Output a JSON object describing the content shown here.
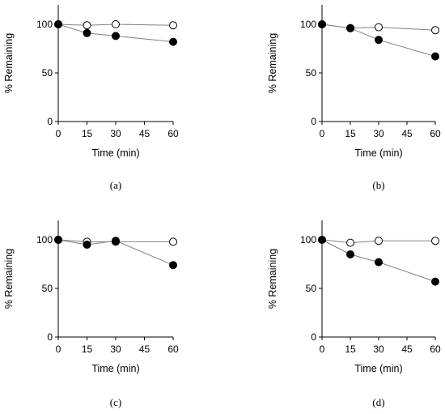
{
  "chart_data": [
    {
      "type": "line",
      "panel_label": "(a)",
      "xlabel": "Time (min)",
      "ylabel": "% Remaining",
      "xlim": [
        0,
        60
      ],
      "ylim": [
        0,
        120
      ],
      "x_ticks": [
        0,
        15,
        30,
        45,
        60
      ],
      "y_ticks": [
        0,
        50,
        100
      ],
      "series": [
        {
          "marker": "open-circle",
          "x": [
            0,
            15,
            30,
            60
          ],
          "values": [
            100,
            99,
            100,
            99
          ]
        },
        {
          "marker": "filled-circle",
          "x": [
            0,
            15,
            30,
            60
          ],
          "values": [
            100,
            91,
            88,
            82
          ]
        }
      ]
    },
    {
      "type": "line",
      "panel_label": "(b)",
      "xlabel": "Time (min)",
      "ylabel": "% Remaining",
      "xlim": [
        0,
        60
      ],
      "ylim": [
        0,
        120
      ],
      "x_ticks": [
        0,
        15,
        30,
        45,
        60
      ],
      "y_ticks": [
        0,
        50,
        100
      ],
      "series": [
        {
          "marker": "open-circle",
          "x": [
            0,
            15,
            30,
            60
          ],
          "values": [
            100,
            96,
            97,
            94
          ]
        },
        {
          "marker": "filled-circle",
          "x": [
            0,
            15,
            30,
            60
          ],
          "values": [
            100,
            96,
            84,
            67
          ]
        }
      ]
    },
    {
      "type": "line",
      "panel_label": "(c)",
      "xlabel": "Time (min)",
      "ylabel": "% Remaining",
      "xlim": [
        0,
        60
      ],
      "ylim": [
        0,
        120
      ],
      "x_ticks": [
        0,
        15,
        30,
        45,
        60
      ],
      "y_ticks": [
        0,
        50,
        100
      ],
      "series": [
        {
          "marker": "open-circle",
          "x": [
            0,
            15,
            30,
            60
          ],
          "values": [
            100,
            98,
            98,
            98
          ]
        },
        {
          "marker": "filled-circle",
          "x": [
            0,
            15,
            30,
            60
          ],
          "values": [
            100,
            95,
            99,
            74
          ]
        }
      ]
    },
    {
      "type": "line",
      "panel_label": "(d)",
      "xlabel": "Time (min)",
      "ylabel": "% Remaining",
      "xlim": [
        0,
        60
      ],
      "ylim": [
        0,
        120
      ],
      "x_ticks": [
        0,
        15,
        30,
        45,
        60
      ],
      "y_ticks": [
        0,
        50,
        100
      ],
      "series": [
        {
          "marker": "open-circle",
          "x": [
            0,
            15,
            30,
            60
          ],
          "values": [
            100,
            97,
            99,
            99
          ]
        },
        {
          "marker": "filled-circle",
          "x": [
            0,
            15,
            30,
            60
          ],
          "values": [
            100,
            85,
            77,
            57
          ],
          "error": [
            0,
            3,
            0,
            0
          ]
        }
      ]
    }
  ]
}
